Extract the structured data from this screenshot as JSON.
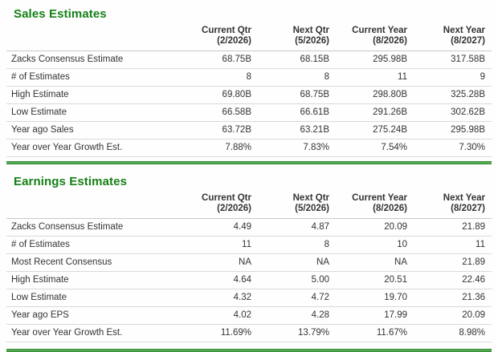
{
  "theme": {
    "title_green": "#168016",
    "bar_green_dark": "#1f7a1f",
    "bar_green_light": "#6abc6a",
    "text_color": "#333333",
    "row_border": "#d9d9d9"
  },
  "tables": [
    {
      "title": "Sales Estimates",
      "columns": [
        {
          "line1": "Current Qtr",
          "line2": "(2/2026)"
        },
        {
          "line1": "Next Qtr",
          "line2": "(5/2026)"
        },
        {
          "line1": "Current Year",
          "line2": "(8/2026)"
        },
        {
          "line1": "Next Year",
          "line2": "(8/2027)"
        }
      ],
      "rows": [
        {
          "label": "Zacks Consensus Estimate",
          "values": [
            "68.75B",
            "68.15B",
            "295.98B",
            "317.58B"
          ]
        },
        {
          "label": "# of Estimates",
          "values": [
            "8",
            "8",
            "11",
            "9"
          ]
        },
        {
          "label": "High Estimate",
          "values": [
            "69.80B",
            "68.75B",
            "298.80B",
            "325.28B"
          ]
        },
        {
          "label": "Low Estimate",
          "values": [
            "66.58B",
            "66.61B",
            "291.26B",
            "302.62B"
          ]
        },
        {
          "label": "Year ago Sales",
          "values": [
            "63.72B",
            "63.21B",
            "275.24B",
            "295.98B"
          ]
        },
        {
          "label": "Year over Year Growth Est.",
          "values": [
            "7.88%",
            "7.83%",
            "7.54%",
            "7.30%"
          ]
        }
      ]
    },
    {
      "title": "Earnings Estimates",
      "columns": [
        {
          "line1": "Current Qtr",
          "line2": "(2/2026)"
        },
        {
          "line1": "Next Qtr",
          "line2": "(5/2026)"
        },
        {
          "line1": "Current Year",
          "line2": "(8/2026)"
        },
        {
          "line1": "Next Year",
          "line2": "(8/2027)"
        }
      ],
      "rows": [
        {
          "label": "Zacks Consensus Estimate",
          "values": [
            "4.49",
            "4.87",
            "20.09",
            "21.89"
          ]
        },
        {
          "label": "# of Estimates",
          "values": [
            "11",
            "8",
            "10",
            "11"
          ]
        },
        {
          "label": "Most Recent Consensus",
          "values": [
            "NA",
            "NA",
            "NA",
            "21.89"
          ]
        },
        {
          "label": "High Estimate",
          "values": [
            "4.64",
            "5.00",
            "20.51",
            "22.46"
          ]
        },
        {
          "label": "Low Estimate",
          "values": [
            "4.32",
            "4.72",
            "19.70",
            "21.36"
          ]
        },
        {
          "label": "Year ago EPS",
          "values": [
            "4.02",
            "4.28",
            "17.99",
            "20.09"
          ]
        },
        {
          "label": "Year over Year Growth Est.",
          "values": [
            "11.69%",
            "13.79%",
            "11.67%",
            "8.98%"
          ]
        }
      ]
    }
  ]
}
